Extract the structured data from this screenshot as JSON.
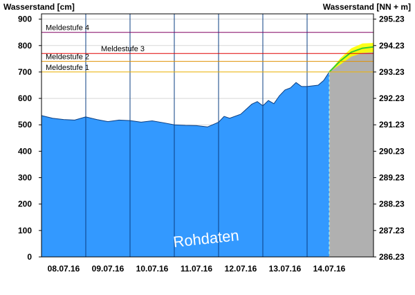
{
  "chart_data": {
    "type": "area",
    "ylabel_left": "Wasserstand [cm]",
    "ylabel_right": "Wasserstand [NN + m]",
    "ylim": [
      0,
      920
    ],
    "yticks_left": [
      0,
      100,
      200,
      300,
      400,
      500,
      600,
      700,
      800,
      900
    ],
    "yticks_right": [
      "286.23",
      "287.23",
      "288.23",
      "289.23",
      "290.23",
      "291.23",
      "292.23",
      "293.23",
      "294.23",
      "295.23"
    ],
    "x_labels": [
      "08.07.16",
      "09.07.16",
      "10.07.16",
      "11.07.16",
      "12.07.16",
      "13.07.16",
      "14.07.16"
    ],
    "x_start": "2016-07-08T00:00",
    "x_end": "2016-07-15T12:00",
    "now": "2016-07-14T12:00",
    "thresholds": [
      {
        "name": "Meldestufe 1",
        "value": 700,
        "color": "#f0b400"
      },
      {
        "name": "Meldestufe 2",
        "value": 740,
        "color": "#e09000"
      },
      {
        "name": "Meldestufe 3",
        "value": 770,
        "color": "#e00000"
      },
      {
        "name": "Meldestufe 4",
        "value": 850,
        "color": "#800060"
      }
    ],
    "series": [
      {
        "color": "#3399ff",
        "points": [
          [
            "2016-07-08T00:00",
            535
          ],
          [
            "2016-07-08T06:00",
            525
          ],
          [
            "2016-07-08T12:00",
            520
          ],
          [
            "2016-07-08T18:00",
            518
          ],
          [
            "2016-07-09T00:00",
            530
          ],
          [
            "2016-07-09T06:00",
            520
          ],
          [
            "2016-07-09T12:00",
            512
          ],
          [
            "2016-07-09T18:00",
            518
          ],
          [
            "2016-07-10T00:00",
            516
          ],
          [
            "2016-07-10T06:00",
            510
          ],
          [
            "2016-07-10T12:00",
            515
          ],
          [
            "2016-07-10T18:00",
            508
          ],
          [
            "2016-07-11T00:00",
            500
          ],
          [
            "2016-07-11T06:00",
            498
          ],
          [
            "2016-07-11T12:00",
            497
          ],
          [
            "2016-07-11T18:00",
            492
          ],
          [
            "2016-07-12T00:00",
            510
          ],
          [
            "2016-07-12T03:00",
            532
          ],
          [
            "2016-07-12T06:00",
            525
          ],
          [
            "2016-07-12T12:00",
            540
          ],
          [
            "2016-07-12T18:00",
            578
          ],
          [
            "2016-07-12T21:00",
            588
          ],
          [
            "2016-07-13T00:00",
            572
          ],
          [
            "2016-07-13T03:00",
            592
          ],
          [
            "2016-07-13T06:00",
            580
          ],
          [
            "2016-07-13T09:00",
            610
          ],
          [
            "2016-07-13T12:00",
            632
          ],
          [
            "2016-07-13T15:00",
            640
          ],
          [
            "2016-07-13T18:00",
            660
          ],
          [
            "2016-07-13T21:00",
            645
          ],
          [
            "2016-07-14T00:00",
            645
          ],
          [
            "2016-07-14T06:00",
            650
          ],
          [
            "2016-07-14T09:00",
            668
          ],
          [
            "2016-07-14T12:00",
            700
          ]
        ]
      }
    ],
    "forecast": {
      "color": "#b0b0b0",
      "band_color": "#ffff00",
      "points": [
        [
          "2016-07-14T12:00",
          700
        ],
        [
          "2016-07-14T18:00",
          742
        ],
        [
          "2016-07-15T00:00",
          775
        ],
        [
          "2016-07-15T06:00",
          790
        ],
        [
          "2016-07-15T12:00",
          795
        ]
      ],
      "upper": [
        [
          "2016-07-14T12:00",
          700
        ],
        [
          "2016-07-14T18:00",
          752
        ],
        [
          "2016-07-15T00:00",
          790
        ],
        [
          "2016-07-15T06:00",
          808
        ],
        [
          "2016-07-15T12:00",
          810
        ]
      ],
      "lower": [
        [
          "2016-07-14T12:00",
          700
        ],
        [
          "2016-07-14T18:00",
          728
        ],
        [
          "2016-07-15T00:00",
          758
        ],
        [
          "2016-07-15T06:00",
          772
        ],
        [
          "2016-07-15T12:00",
          775
        ]
      ]
    },
    "watermark": "Rohdaten"
  }
}
